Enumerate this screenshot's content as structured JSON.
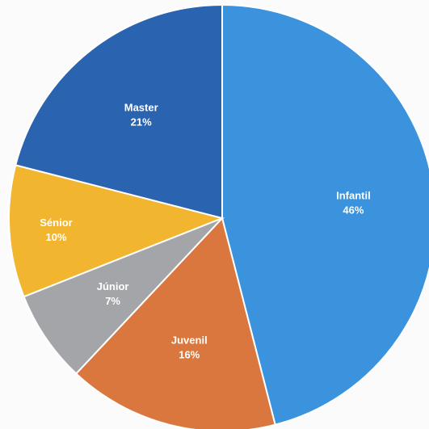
{
  "chart_data": {
    "type": "pie",
    "slices": [
      {
        "label": "Infantil",
        "value": 46,
        "value_label": "46%",
        "color": "#3a93dc"
      },
      {
        "label": "Juvenil",
        "value": 16,
        "value_label": "16%",
        "color": "#d9773f"
      },
      {
        "label": "Júnior",
        "value": 7,
        "value_label": "7%",
        "color": "#a4a5a8"
      },
      {
        "label": "Sénior",
        "value": 10,
        "value_label": "10%",
        "color": "#f2b530"
      },
      {
        "label": "Master",
        "value": 21,
        "value_label": "21%",
        "color": "#2a64b0"
      }
    ],
    "start_angle": "12 o'clock",
    "direction": "clockwise",
    "legend": "none",
    "data_labels": "inside"
  }
}
